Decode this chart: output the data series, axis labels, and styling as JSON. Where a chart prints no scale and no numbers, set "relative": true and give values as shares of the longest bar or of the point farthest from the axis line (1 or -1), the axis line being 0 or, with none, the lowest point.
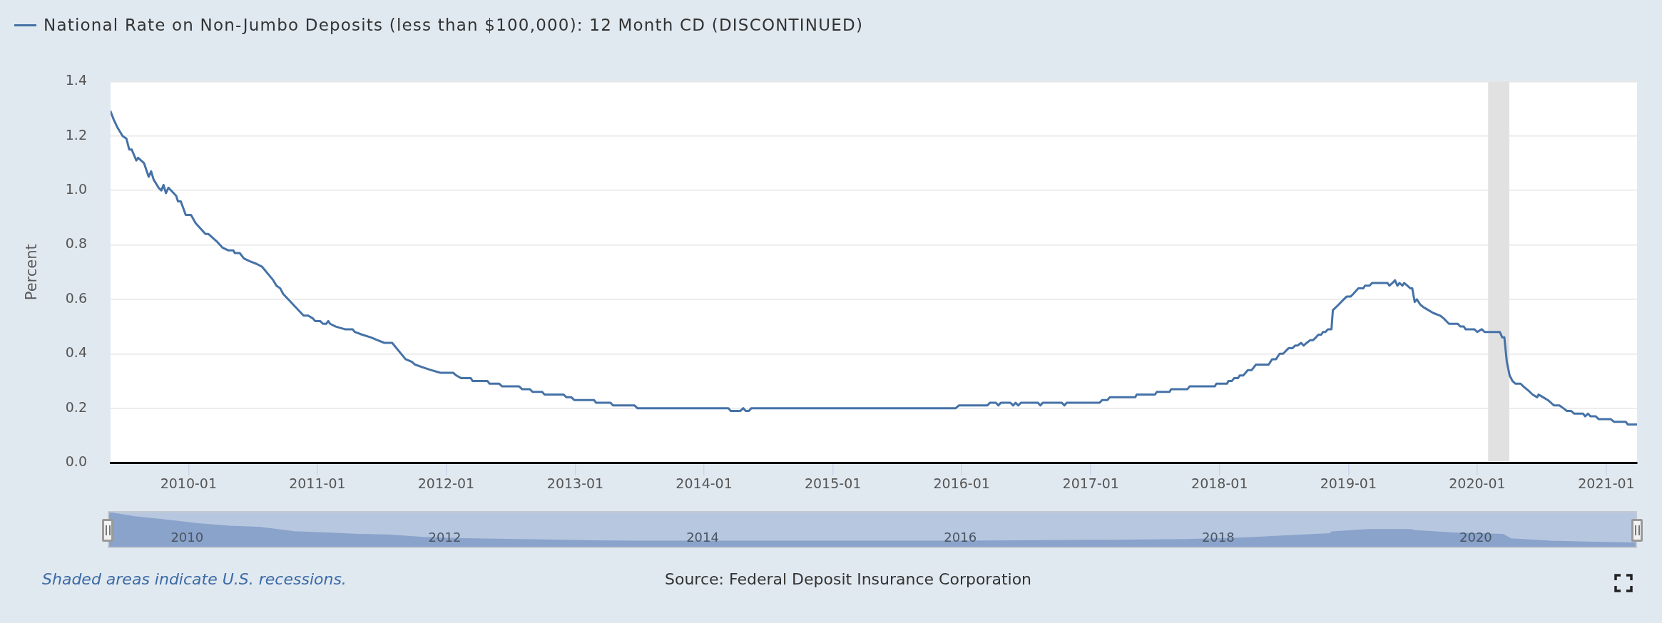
{
  "chart_data": [
    {
      "type": "line",
      "ylabel": "Percent",
      "legend": "top left",
      "grid": "y",
      "xlim": [
        "2009-05-25",
        "2021-03-29"
      ],
      "xticks": [
        "2010-01",
        "2011-01",
        "2012-01",
        "2013-01",
        "2014-01",
        "2015-01",
        "2016-01",
        "2017-01",
        "2018-01",
        "2019-01",
        "2020-01",
        "2021-01"
      ],
      "ylim": [
        0,
        1.4
      ],
      "yticks": [
        {
          "value": 0,
          "label": "0.0"
        },
        0.2,
        0.4,
        0.6,
        0.8,
        {
          "value": 1,
          "label": "1.0"
        },
        1.2,
        1.4
      ],
      "bands": [
        {
          "axis": "x",
          "from": "2020-02-01",
          "to": "2020-04-01",
          "color": "#e1e1e1"
        }
      ],
      "annotations": [
        "Shaded areas indicate U.S. recessions.",
        "Source: Federal Deposit Insurance Corporation"
      ],
      "x": [
        "2009-05-25",
        "2009-06-03",
        "2009-06-14",
        "2009-06-28",
        "2009-07-09",
        "2009-07-17",
        "2009-07-24",
        "2009-08-06",
        "2009-08-11",
        "2009-08-28",
        "2009-09-10",
        "2009-09-17",
        "2009-09-24",
        "2009-10-08",
        "2009-10-16",
        "2009-10-22",
        "2009-10-29",
        "2009-11-05",
        "2009-11-27",
        "2009-12-02",
        "2009-12-10",
        "2009-12-24",
        "2010-01-08",
        "2010-01-21",
        "2010-02-18",
        "2010-02-26",
        "2010-03-24",
        "2010-04-07",
        "2010-04-23",
        "2010-05-08",
        "2010-05-12",
        "2010-05-26",
        "2010-06-07",
        "2010-06-23",
        "2010-07-13",
        "2010-07-28",
        "2010-08-29",
        "2010-09-07",
        "2010-09-18",
        "2010-09-26",
        "2010-11-23",
        "2010-12-06",
        "2010-12-19",
        "2010-12-26",
        "2011-01-09",
        "2011-01-17",
        "2011-01-26",
        "2011-02-01",
        "2011-02-06",
        "2011-02-22",
        "2011-03-20",
        "2011-04-11",
        "2011-04-17",
        "2011-05-08",
        "2011-06-02",
        "2011-06-20",
        "2011-07-10",
        "2011-08-01",
        "2011-09-08",
        "2011-09-26",
        "2011-10-05",
        "2011-10-27",
        "2011-11-19",
        "2011-12-16",
        "2012-01-21",
        "2012-01-30",
        "2012-02-13",
        "2012-03-11",
        "2012-03-16",
        "2012-04-27",
        "2012-05-03",
        "2012-05-30",
        "2012-06-08",
        "2012-07-26",
        "2012-08-03",
        "2012-08-25",
        "2012-09-02",
        "2012-09-29",
        "2012-10-06",
        "2012-11-29",
        "2012-12-07",
        "2012-12-21",
        "2012-12-29",
        "2013-02-23",
        "2013-03-01",
        "2013-04-11",
        "2013-04-18",
        "2013-06-18",
        "2013-06-26",
        "2014-03-11",
        "2014-03-17",
        "2014-04-14",
        "2014-04-22",
        "2014-04-29",
        "2014-05-08",
        "2014-05-15",
        "2015-12-15",
        "2015-12-24",
        "2016-03-14",
        "2016-03-21",
        "2016-04-07",
        "2016-04-14",
        "2016-04-21",
        "2016-05-18",
        "2016-05-26",
        "2016-06-02",
        "2016-06-09",
        "2016-06-17",
        "2016-08-04",
        "2016-08-11",
        "2016-08-18",
        "2016-10-11",
        "2016-10-18",
        "2016-10-25",
        "2017-01-26",
        "2017-02-02",
        "2017-02-17",
        "2017-02-24",
        "2017-05-07",
        "2017-05-11",
        "2017-07-02",
        "2017-07-07",
        "2017-08-12",
        "2017-08-17",
        "2017-10-02",
        "2017-10-08",
        "2017-12-18",
        "2017-12-23",
        "2018-01-22",
        "2018-01-26",
        "2018-02-05",
        "2018-02-11",
        "2018-02-22",
        "2018-02-27",
        "2018-03-09",
        "2018-03-22",
        "2018-04-02",
        "2018-04-14",
        "2018-05-20",
        "2018-05-30",
        "2018-06-10",
        "2018-06-20",
        "2018-06-30",
        "2018-07-15",
        "2018-07-26",
        "2018-08-03",
        "2018-08-10",
        "2018-08-20",
        "2018-08-27",
        "2018-09-05",
        "2018-09-15",
        "2018-09-23",
        "2018-10-01",
        "2018-10-08",
        "2018-10-16",
        "2018-10-21",
        "2018-10-28",
        "2018-11-04",
        "2018-11-14",
        "2018-11-18",
        "2018-12-04",
        "2018-12-19",
        "2018-12-27",
        "2019-01-07",
        "2019-01-15",
        "2019-01-29",
        "2019-02-12",
        "2019-02-17",
        "2019-03-02",
        "2019-03-09",
        "2019-04-22",
        "2019-04-27",
        "2019-05-06",
        "2019-05-13",
        "2019-05-20",
        "2019-05-26",
        "2019-06-03",
        "2019-06-08",
        "2019-06-26",
        "2019-07-01",
        "2019-07-08",
        "2019-07-14",
        "2019-07-24",
        "2019-08-03",
        "2019-08-16",
        "2019-08-29",
        "2019-09-18",
        "2019-09-28",
        "2019-10-13",
        "2019-11-07",
        "2019-11-14",
        "2019-11-24",
        "2019-11-29",
        "2019-12-24",
        "2020-01-01",
        "2020-01-14",
        "2020-01-22",
        "2020-03-05",
        "2020-03-12",
        "2020-03-18",
        "2020-03-25",
        "2020-04-02",
        "2020-04-10",
        "2020-04-18",
        "2020-05-03",
        "2020-05-11",
        "2020-05-29",
        "2020-06-06",
        "2020-06-19",
        "2020-06-23",
        "2020-07-06",
        "2020-07-19",
        "2020-08-06",
        "2020-08-21",
        "2020-09-01",
        "2020-09-11",
        "2020-09-23",
        "2020-10-02",
        "2020-10-27",
        "2020-11-02",
        "2020-11-10",
        "2020-11-17",
        "2020-12-02",
        "2020-12-10",
        "2021-01-13",
        "2021-01-23",
        "2021-02-25",
        "2021-03-03",
        "2021-03-29"
      ],
      "series": [
        {
          "name": "National Rate on Non-Jumbo Deposits (less than $100,000): 12 Month CD (DISCONTINUED)",
          "color": "#4572a7",
          "values": [
            1.29,
            1.26,
            1.23,
            1.2,
            1.19,
            1.15,
            1.15,
            1.11,
            1.12,
            1.1,
            1.05,
            1.07,
            1.04,
            1.01,
            1.0,
            1.02,
            0.99,
            1.01,
            0.98,
            0.96,
            0.96,
            0.91,
            0.91,
            0.88,
            0.84,
            0.84,
            0.81,
            0.79,
            0.78,
            0.78,
            0.77,
            0.77,
            0.75,
            0.74,
            0.73,
            0.72,
            0.67,
            0.65,
            0.64,
            0.62,
            0.54,
            0.54,
            0.53,
            0.52,
            0.52,
            0.51,
            0.51,
            0.52,
            0.51,
            0.5,
            0.49,
            0.49,
            0.48,
            0.47,
            0.46,
            0.45,
            0.44,
            0.44,
            0.38,
            0.37,
            0.36,
            0.35,
            0.34,
            0.33,
            0.33,
            0.32,
            0.31,
            0.31,
            0.3,
            0.3,
            0.29,
            0.29,
            0.28,
            0.28,
            0.27,
            0.27,
            0.26,
            0.26,
            0.25,
            0.25,
            0.24,
            0.24,
            0.23,
            0.23,
            0.22,
            0.22,
            0.21,
            0.21,
            0.2,
            0.2,
            0.19,
            0.19,
            0.2,
            0.19,
            0.19,
            0.2,
            0.2,
            0.21,
            0.21,
            0.22,
            0.22,
            0.21,
            0.22,
            0.22,
            0.21,
            0.22,
            0.21,
            0.22,
            0.22,
            0.21,
            0.22,
            0.22,
            0.21,
            0.22,
            0.22,
            0.23,
            0.23,
            0.24,
            0.24,
            0.25,
            0.25,
            0.26,
            0.26,
            0.27,
            0.27,
            0.28,
            0.28,
            0.29,
            0.29,
            0.3,
            0.3,
            0.31,
            0.31,
            0.32,
            0.32,
            0.34,
            0.34,
            0.36,
            0.36,
            0.38,
            0.38,
            0.4,
            0.4,
            0.42,
            0.42,
            0.43,
            0.43,
            0.44,
            0.43,
            0.44,
            0.45,
            0.45,
            0.46,
            0.47,
            0.47,
            0.48,
            0.48,
            0.49,
            0.49,
            0.56,
            0.58,
            0.6,
            0.61,
            0.61,
            0.62,
            0.64,
            0.64,
            0.65,
            0.65,
            0.66,
            0.66,
            0.65,
            0.66,
            0.67,
            0.65,
            0.66,
            0.65,
            0.66,
            0.64,
            0.64,
            0.59,
            0.6,
            0.58,
            0.57,
            0.56,
            0.55,
            0.54,
            0.53,
            0.51,
            0.51,
            0.5,
            0.5,
            0.49,
            0.49,
            0.48,
            0.49,
            0.48,
            0.48,
            0.46,
            0.46,
            0.37,
            0.32,
            0.3,
            0.29,
            0.29,
            0.28,
            0.26,
            0.25,
            0.24,
            0.25,
            0.24,
            0.23,
            0.21,
            0.21,
            0.2,
            0.19,
            0.19,
            0.18,
            0.18,
            0.17,
            0.18,
            0.17,
            0.17,
            0.16,
            0.16,
            0.15,
            0.15,
            0.14,
            0.14
          ]
        }
      ]
    },
    {
      "type": "area",
      "relative": true,
      "color": "#8aa3cb",
      "xlim": [
        "2009-05-25",
        "2021-03-29"
      ],
      "xticks": [
        "2010",
        "2012",
        "2014",
        "2016",
        "2018",
        "2020"
      ],
      "x": [
        "2009-05-25",
        "2009-08-01",
        "2009-11-01",
        "2010-02-01",
        "2010-05-01",
        "2010-08-01",
        "2010-11-01",
        "2011-02-01",
        "2011-05-01",
        "2011-08-01",
        "2011-11-01",
        "2012-02-01",
        "2012-06-01",
        "2012-10-01",
        "2013-03-01",
        "2013-07-01",
        "2015-12-15",
        "2016-06-01",
        "2017-03-01",
        "2017-10-01",
        "2018-03-01",
        "2018-07-01",
        "2018-11-14",
        "2018-11-18",
        "2019-03-01",
        "2019-07-01",
        "2019-07-14",
        "2019-11-01",
        "2020-03-18",
        "2020-04-10",
        "2020-08-01",
        "2020-12-01",
        "2021-03-29"
      ],
      "values": [
        1.0,
        0.88,
        0.78,
        0.67,
        0.6,
        0.56,
        0.44,
        0.4,
        0.36,
        0.34,
        0.27,
        0.24,
        0.22,
        0.2,
        0.17,
        0.16,
        0.16,
        0.17,
        0.19,
        0.21,
        0.25,
        0.31,
        0.38,
        0.43,
        0.5,
        0.5,
        0.47,
        0.4,
        0.36,
        0.23,
        0.16,
        0.13,
        0.11
      ]
    }
  ]
}
